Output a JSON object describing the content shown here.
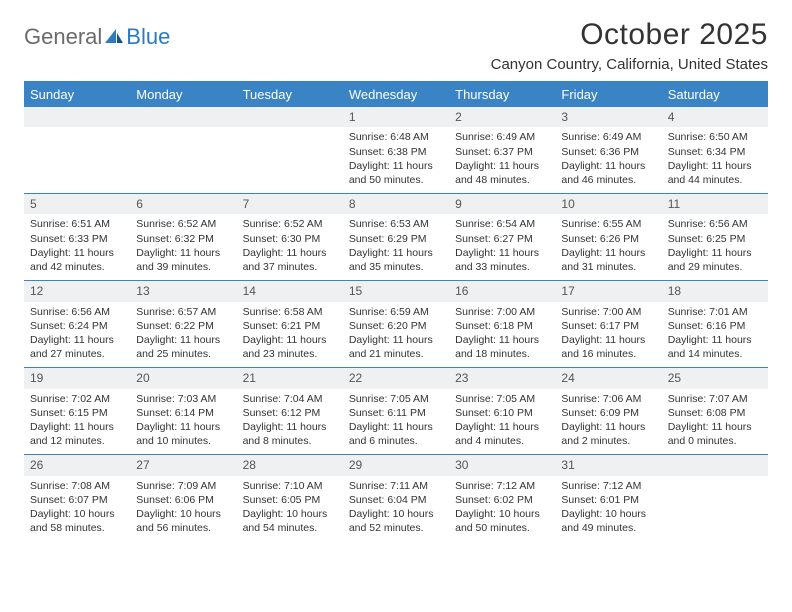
{
  "logo": {
    "text_general": "General",
    "text_blue": "Blue"
  },
  "title": "October 2025",
  "location": "Canyon Country, California, United States",
  "header_bg": "#3a83c4",
  "header_text_color": "#ffffff",
  "rule_color": "#3a83c4",
  "daynum_bg": "#eef0f2",
  "body_font_size": 10.5,
  "header_font_size": 13,
  "title_font_size": 30,
  "location_font_size": 15,
  "weekdays": [
    "Sunday",
    "Monday",
    "Tuesday",
    "Wednesday",
    "Thursday",
    "Friday",
    "Saturday"
  ],
  "weeks": [
    [
      {
        "blank": true
      },
      {
        "blank": true
      },
      {
        "blank": true
      },
      {
        "n": "1",
        "sr": "6:48 AM",
        "ss": "6:38 PM",
        "dh": "11",
        "dm": "50"
      },
      {
        "n": "2",
        "sr": "6:49 AM",
        "ss": "6:37 PM",
        "dh": "11",
        "dm": "48"
      },
      {
        "n": "3",
        "sr": "6:49 AM",
        "ss": "6:36 PM",
        "dh": "11",
        "dm": "46"
      },
      {
        "n": "4",
        "sr": "6:50 AM",
        "ss": "6:34 PM",
        "dh": "11",
        "dm": "44"
      }
    ],
    [
      {
        "n": "5",
        "sr": "6:51 AM",
        "ss": "6:33 PM",
        "dh": "11",
        "dm": "42"
      },
      {
        "n": "6",
        "sr": "6:52 AM",
        "ss": "6:32 PM",
        "dh": "11",
        "dm": "39"
      },
      {
        "n": "7",
        "sr": "6:52 AM",
        "ss": "6:30 PM",
        "dh": "11",
        "dm": "37"
      },
      {
        "n": "8",
        "sr": "6:53 AM",
        "ss": "6:29 PM",
        "dh": "11",
        "dm": "35"
      },
      {
        "n": "9",
        "sr": "6:54 AM",
        "ss": "6:27 PM",
        "dh": "11",
        "dm": "33"
      },
      {
        "n": "10",
        "sr": "6:55 AM",
        "ss": "6:26 PM",
        "dh": "11",
        "dm": "31"
      },
      {
        "n": "11",
        "sr": "6:56 AM",
        "ss": "6:25 PM",
        "dh": "11",
        "dm": "29"
      }
    ],
    [
      {
        "n": "12",
        "sr": "6:56 AM",
        "ss": "6:24 PM",
        "dh": "11",
        "dm": "27"
      },
      {
        "n": "13",
        "sr": "6:57 AM",
        "ss": "6:22 PM",
        "dh": "11",
        "dm": "25"
      },
      {
        "n": "14",
        "sr": "6:58 AM",
        "ss": "6:21 PM",
        "dh": "11",
        "dm": "23"
      },
      {
        "n": "15",
        "sr": "6:59 AM",
        "ss": "6:20 PM",
        "dh": "11",
        "dm": "21"
      },
      {
        "n": "16",
        "sr": "7:00 AM",
        "ss": "6:18 PM",
        "dh": "11",
        "dm": "18"
      },
      {
        "n": "17",
        "sr": "7:00 AM",
        "ss": "6:17 PM",
        "dh": "11",
        "dm": "16"
      },
      {
        "n": "18",
        "sr": "7:01 AM",
        "ss": "6:16 PM",
        "dh": "11",
        "dm": "14"
      }
    ],
    [
      {
        "n": "19",
        "sr": "7:02 AM",
        "ss": "6:15 PM",
        "dh": "11",
        "dm": "12"
      },
      {
        "n": "20",
        "sr": "7:03 AM",
        "ss": "6:14 PM",
        "dh": "11",
        "dm": "10"
      },
      {
        "n": "21",
        "sr": "7:04 AM",
        "ss": "6:12 PM",
        "dh": "11",
        "dm": "8"
      },
      {
        "n": "22",
        "sr": "7:05 AM",
        "ss": "6:11 PM",
        "dh": "11",
        "dm": "6"
      },
      {
        "n": "23",
        "sr": "7:05 AM",
        "ss": "6:10 PM",
        "dh": "11",
        "dm": "4"
      },
      {
        "n": "24",
        "sr": "7:06 AM",
        "ss": "6:09 PM",
        "dh": "11",
        "dm": "2"
      },
      {
        "n": "25",
        "sr": "7:07 AM",
        "ss": "6:08 PM",
        "dh": "11",
        "dm": "0"
      }
    ],
    [
      {
        "n": "26",
        "sr": "7:08 AM",
        "ss": "6:07 PM",
        "dh": "10",
        "dm": "58"
      },
      {
        "n": "27",
        "sr": "7:09 AM",
        "ss": "6:06 PM",
        "dh": "10",
        "dm": "56"
      },
      {
        "n": "28",
        "sr": "7:10 AM",
        "ss": "6:05 PM",
        "dh": "10",
        "dm": "54"
      },
      {
        "n": "29",
        "sr": "7:11 AM",
        "ss": "6:04 PM",
        "dh": "10",
        "dm": "52"
      },
      {
        "n": "30",
        "sr": "7:12 AM",
        "ss": "6:02 PM",
        "dh": "10",
        "dm": "50"
      },
      {
        "n": "31",
        "sr": "7:12 AM",
        "ss": "6:01 PM",
        "dh": "10",
        "dm": "49"
      },
      {
        "blank": true
      }
    ]
  ]
}
